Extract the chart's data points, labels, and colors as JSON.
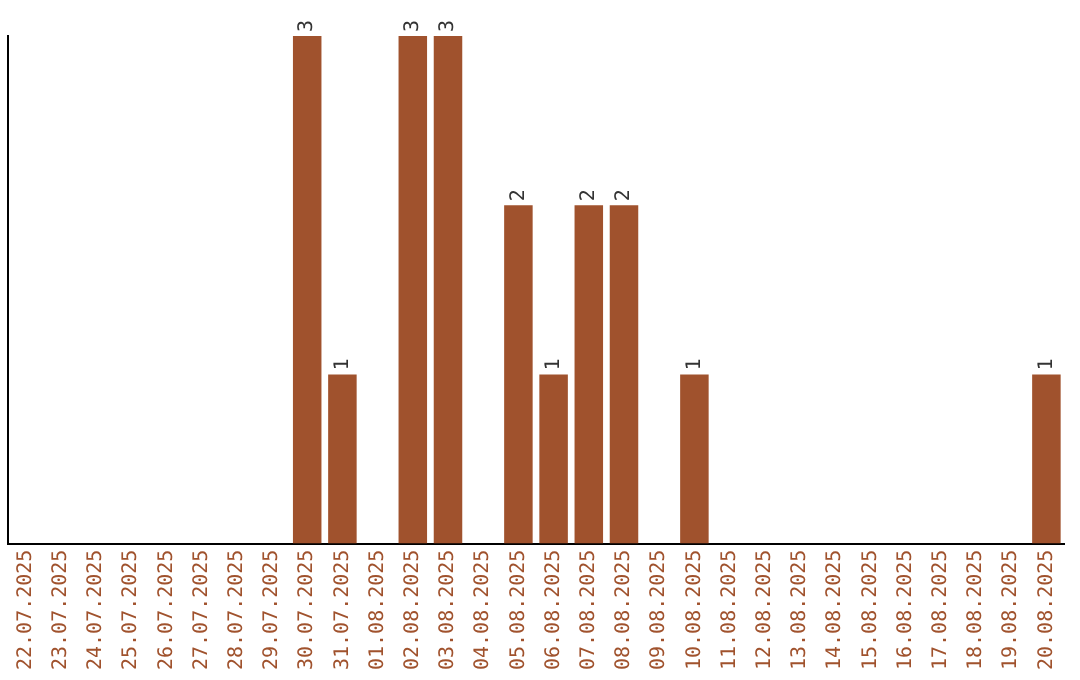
{
  "chart_data": {
    "type": "bar",
    "categories": [
      "22.07.2025",
      "23.07.2025",
      "24.07.2025",
      "25.07.2025",
      "26.07.2025",
      "27.07.2025",
      "28.07.2025",
      "29.07.2025",
      "30.07.2025",
      "31.07.2025",
      "01.08.2025",
      "02.08.2025",
      "03.08.2025",
      "04.08.2025",
      "05.08.2025",
      "06.08.2025",
      "07.08.2025",
      "08.08.2025",
      "09.08.2025",
      "10.08.2025",
      "11.08.2025",
      "12.08.2025",
      "13.08.2025",
      "14.08.2025",
      "15.08.2025",
      "16.08.2025",
      "17.08.2025",
      "18.08.2025",
      "19.08.2025",
      "20.08.2025"
    ],
    "values": [
      0,
      0,
      0,
      0,
      0,
      0,
      0,
      0,
      3,
      1,
      0,
      3,
      3,
      0,
      2,
      1,
      2,
      2,
      0,
      1,
      0,
      0,
      0,
      0,
      0,
      0,
      0,
      0,
      0,
      1
    ],
    "value_labels": [
      null,
      null,
      null,
      null,
      null,
      null,
      null,
      null,
      "3",
      "1",
      null,
      "3",
      "3",
      null,
      "2",
      "1",
      "2",
      "2",
      null,
      "1",
      null,
      null,
      null,
      null,
      null,
      null,
      null,
      null,
      null,
      "1"
    ],
    "color": "#a0522d",
    "tick_labels": "x",
    "grid": false,
    "legend": false
  }
}
